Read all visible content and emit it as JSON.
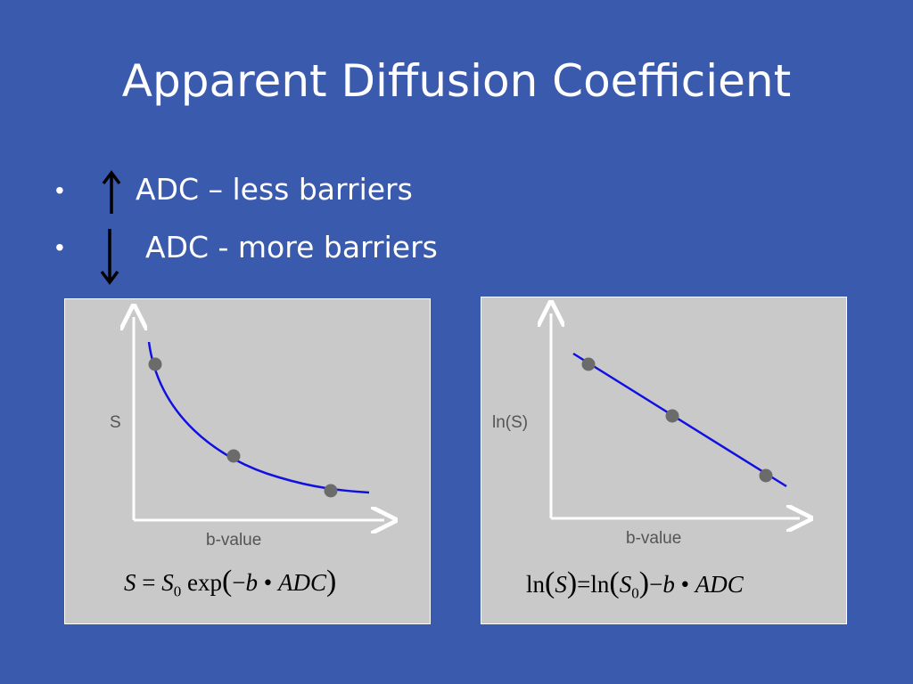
{
  "slide": {
    "title": "Apparent Diffusion Coefficient",
    "bullets": [
      {
        "dot": "•",
        "arrow": "up-arrow",
        "text": "ADC – less barriers"
      },
      {
        "dot": "•",
        "arrow": "down-arrow",
        "text": "ADC -  more barriers"
      }
    ]
  },
  "left_panel": {
    "y_label": "S",
    "x_label": "b-value",
    "formula": {
      "lhs": "S",
      "eq": "=",
      "s": "S",
      "sub": "0",
      "func": "exp",
      "lparen": "(",
      "minus": "−",
      "b": "b",
      "dot": "•",
      "adc": "ADC",
      "rparen": ")"
    }
  },
  "right_panel": {
    "y_label": "ln(S)",
    "x_label": "b-value",
    "formula": {
      "ln1": "ln",
      "lp1": "(",
      "s1": "S",
      "rp1": ")",
      "eq": "=",
      "ln2": "ln",
      "lp2": "(",
      "s2": "S",
      "sub": "0",
      "rp2": ")",
      "minus": "−",
      "b": "b",
      "dot": "•",
      "adc": "ADC"
    }
  },
  "colors": {
    "background": "#3a5aad",
    "panel": "#c9c9c9",
    "curve": "#1010e0",
    "point": "#6b6b6b"
  }
}
